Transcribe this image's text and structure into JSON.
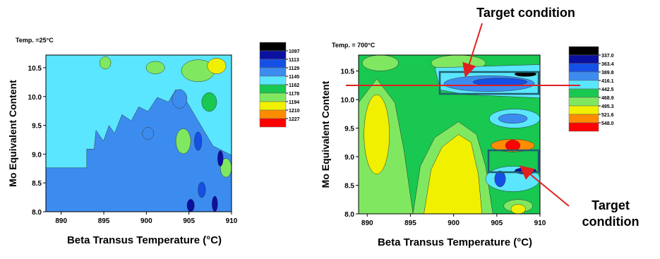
{
  "chart_data": [
    {
      "type": "contour",
      "annotation": "Temp. =25°C",
      "xlabel": "Beta Transus Temperature (°C)",
      "ylabel": "Mo Equivalent Content",
      "xlim": [
        888.2,
        910
      ],
      "xticks": [
        890,
        895,
        900,
        905,
        910
      ],
      "ylim": [
        8.0,
        10.72
      ],
      "yticks": [
        {
          "value": 8,
          "label": "8.0"
        },
        8.5,
        {
          "value": 9,
          "label": "9.0"
        },
        9.5,
        {
          "value": 10,
          "label": "10.0"
        },
        10.5
      ],
      "levels": [
        1097,
        1113,
        1129,
        1145,
        1162,
        1178,
        1194,
        1210,
        1227
      ],
      "colors": [
        "#000000",
        "#0a10a0",
        "#1450e6",
        "#3c8cf0",
        "#5ae6ff",
        "#18c850",
        "#80e860",
        "#f0f000",
        "#ff8c00",
        "#ff0000"
      ]
    },
    {
      "type": "contour",
      "annotation": "Temp. = 700°C",
      "xlabel": "Beta Transus Temperature (°C)",
      "ylabel": "Mo Equivalent Content",
      "xlim": [
        889,
        910
      ],
      "xticks": [
        890,
        895,
        900,
        905,
        910
      ],
      "ylim": [
        8.0,
        10.78
      ],
      "yticks": [
        {
          "value": 8,
          "label": "8.0"
        },
        8.5,
        {
          "value": 9,
          "label": "9.0"
        },
        9.5,
        {
          "value": 10,
          "label": "10.0"
        },
        10.5
      ],
      "levels": [
        337,
        363.4,
        389.8,
        416.1,
        442.5,
        468.9,
        495.3,
        521.6,
        548
      ],
      "level_labels": [
        "337.0",
        "363.4",
        "389.8",
        "416.1",
        "442.5",
        "468.9",
        "495.3",
        "521.6",
        "548.0"
      ],
      "colors": [
        "#000000",
        "#0a10a0",
        "#1450e6",
        "#3c8cf0",
        "#5ae6ff",
        "#18c850",
        "#80e860",
        "#f0f000",
        "#ff8c00",
        "#ff0000"
      ],
      "annotations": [
        "Target condition",
        "Target condition"
      ]
    }
  ]
}
